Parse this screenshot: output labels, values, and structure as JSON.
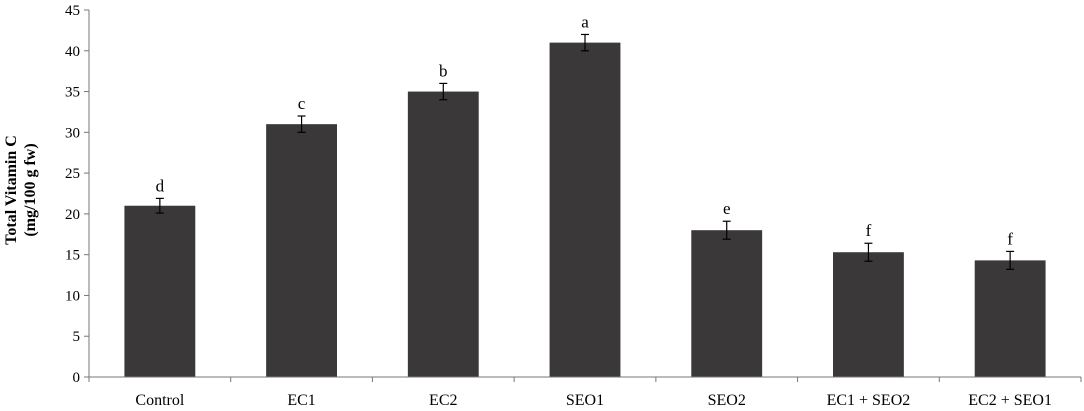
{
  "chart_data": {
    "type": "bar",
    "categories": [
      "Control",
      "EC1",
      "EC2",
      "SEO1",
      "SEO2",
      "EC1 + SEO2",
      "EC2 + SEO1"
    ],
    "values": [
      21,
      31,
      35,
      41,
      18,
      15.3,
      14.3
    ],
    "errors": [
      0.9,
      1.0,
      1.0,
      1.0,
      1.1,
      1.1,
      1.1
    ],
    "significance_labels": [
      "d",
      "c",
      "b",
      "a",
      "e",
      "f",
      "f"
    ],
    "ylabel_line1": "Total Vitamin C",
    "ylabel_line2": "(mg/100 g fw)",
    "ylim": [
      0,
      45
    ],
    "yticks": [
      0,
      5,
      10,
      15,
      20,
      25,
      30,
      35,
      40,
      45
    ],
    "bar_color": "#3a3838",
    "grid": false,
    "legend": "none"
  }
}
